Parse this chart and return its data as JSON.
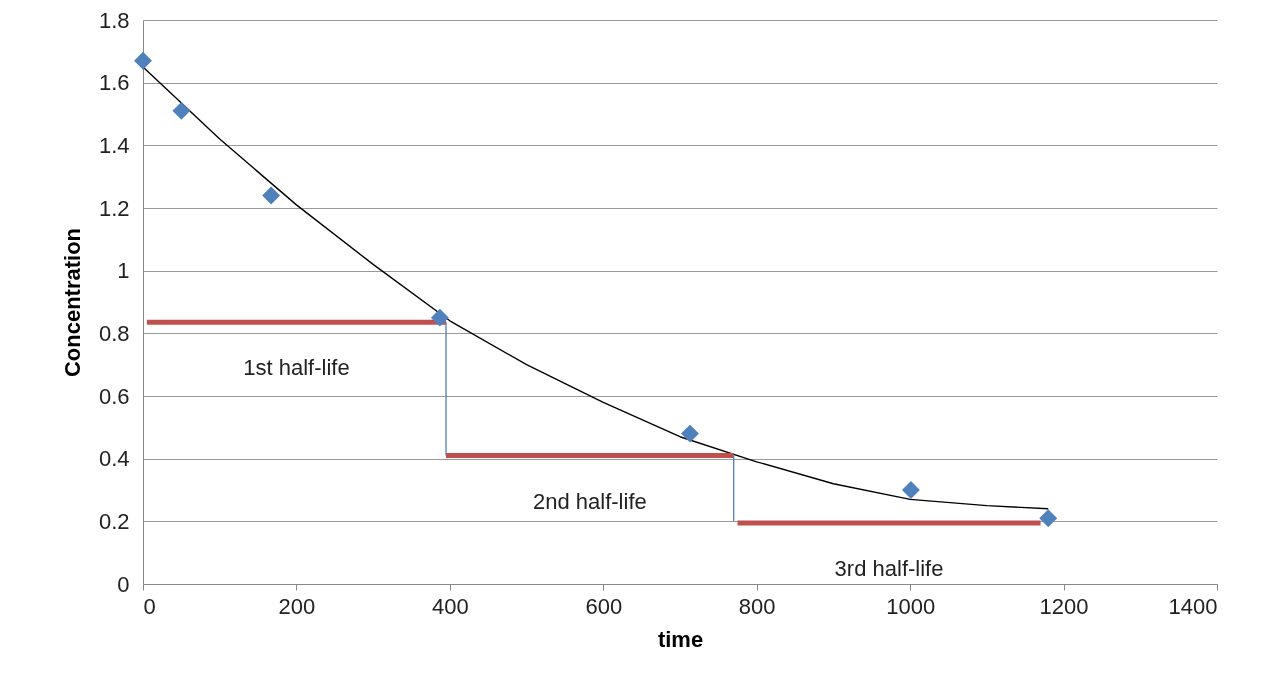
{
  "chart_data": {
    "type": "scatter",
    "xlabel": "time",
    "ylabel": "Concentration",
    "xlim": [
      0,
      1400
    ],
    "xticks": [
      0,
      200,
      400,
      600,
      800,
      1000,
      1200,
      1400
    ],
    "ylim": [
      0,
      1.8
    ],
    "yticks": [
      0,
      0.2,
      0.4,
      0.6,
      0.8,
      1,
      1.2,
      1.4,
      1.6,
      1.8
    ],
    "grid": "y",
    "series": [
      {
        "type": "line",
        "color": "#000000",
        "marker": "none",
        "line_style": "solid",
        "x": [
          0,
          100,
          200,
          300,
          400,
          500,
          600,
          700,
          800,
          900,
          1000,
          1100,
          1180
        ],
        "values": [
          1.65,
          1.42,
          1.21,
          1.02,
          0.84,
          0.7,
          0.58,
          0.47,
          0.39,
          0.32,
          0.27,
          0.25,
          0.24
        ]
      },
      {
        "type": "line",
        "color": "#c0504d",
        "marker": "none",
        "line_style": "solid",
        "x": [
          5,
          395
        ],
        "values": [
          0.835,
          0.835
        ]
      },
      {
        "type": "line",
        "color": "#4f81bd",
        "marker": "none",
        "line_style": "solid",
        "x": [
          395,
          395
        ],
        "values": [
          0.835,
          0.41
        ]
      },
      {
        "type": "line",
        "color": "#c0504d",
        "marker": "none",
        "line_style": "solid",
        "x": [
          395,
          770
        ],
        "values": [
          0.41,
          0.41
        ]
      },
      {
        "type": "line",
        "color": "#4f81bd",
        "marker": "none",
        "line_style": "solid",
        "x": [
          770,
          770
        ],
        "values": [
          0.41,
          0.2
        ]
      },
      {
        "type": "line",
        "color": "#c0504d",
        "marker": "none",
        "line_style": "solid",
        "x": [
          775,
          1170
        ],
        "values": [
          0.195,
          0.195
        ]
      },
      {
        "color": "#4f81bd",
        "marker": "diamond",
        "x": [
          0,
          50,
          167,
          387,
          713,
          1001,
          1180
        ],
        "values": [
          1.67,
          1.51,
          1.24,
          0.85,
          0.48,
          0.3,
          0.21
        ]
      }
    ],
    "annotations": [
      "1st half-life",
      "2nd half-life",
      "3rd half-life"
    ]
  }
}
